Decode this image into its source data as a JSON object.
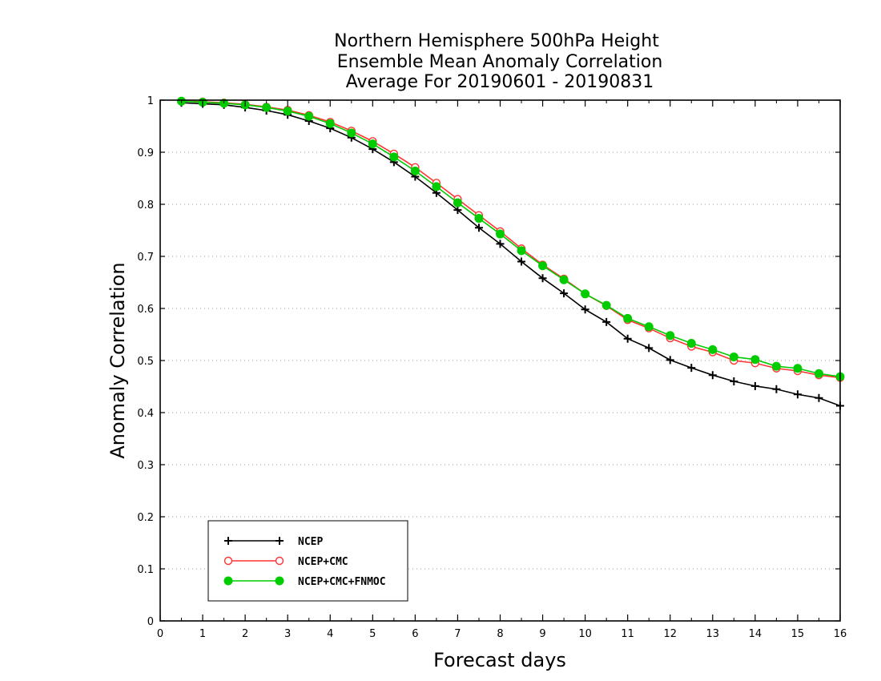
{
  "chart_data": {
    "type": "line",
    "title": [
      "Northern Hemisphere 500hPa Height",
      "Ensemble Mean Anomaly Correlation",
      "Average For 20190601 - 20190831"
    ],
    "xlabel": "Forecast days",
    "ylabel": "Anomaly Correlation",
    "xlim": [
      0,
      16
    ],
    "ylim": [
      0,
      1
    ],
    "xticks": [
      "0",
      "1",
      "2",
      "3",
      "4",
      "5",
      "6",
      "7",
      "8",
      "9",
      "10",
      "11",
      "12",
      "13",
      "14",
      "15",
      "16"
    ],
    "yticks": [
      "0",
      "0.1",
      "0.2",
      "0.3",
      "0.4",
      "0.5",
      "0.6",
      "0.7",
      "0.8",
      "0.9",
      "1"
    ],
    "grid": true,
    "legend_position": "bottom-left",
    "x": [
      0.5,
      1,
      1.5,
      2,
      2.5,
      3,
      3.5,
      4,
      4.5,
      5,
      5.5,
      6,
      6.5,
      7,
      7.5,
      8,
      8.5,
      9,
      9.5,
      10,
      10.5,
      11,
      11.5,
      12,
      12.5,
      13,
      13.5,
      14,
      14.5,
      15,
      15.5,
      16
    ],
    "series": [
      {
        "name": "NCEP",
        "color": "#000000",
        "marker": "plus",
        "values": [
          0.995,
          0.993,
          0.991,
          0.986,
          0.98,
          0.972,
          0.96,
          0.946,
          0.928,
          0.906,
          0.881,
          0.853,
          0.822,
          0.789,
          0.755,
          0.724,
          0.69,
          0.658,
          0.629,
          0.598,
          0.574,
          0.542,
          0.524,
          0.501,
          0.486,
          0.472,
          0.46,
          0.451,
          0.445,
          0.435,
          0.428,
          0.413
        ]
      },
      {
        "name": "NCEP+CMC",
        "color": "#ff3333",
        "marker": "open-circle",
        "values": [
          0.998,
          0.997,
          0.995,
          0.992,
          0.987,
          0.981,
          0.971,
          0.958,
          0.941,
          0.921,
          0.897,
          0.871,
          0.841,
          0.81,
          0.779,
          0.748,
          0.715,
          0.684,
          0.657,
          0.628,
          0.605,
          0.578,
          0.562,
          0.543,
          0.527,
          0.516,
          0.5,
          0.495,
          0.485,
          0.48,
          0.472,
          0.467
        ]
      },
      {
        "name": "NCEP+CMC+FNMOC",
        "color": "#00cc00",
        "marker": "filled-circle",
        "values": [
          0.998,
          0.996,
          0.994,
          0.991,
          0.986,
          0.979,
          0.969,
          0.955,
          0.937,
          0.916,
          0.891,
          0.864,
          0.834,
          0.803,
          0.773,
          0.743,
          0.711,
          0.682,
          0.655,
          0.628,
          0.606,
          0.581,
          0.565,
          0.548,
          0.533,
          0.521,
          0.507,
          0.502,
          0.489,
          0.485,
          0.475,
          0.469
        ]
      }
    ]
  }
}
